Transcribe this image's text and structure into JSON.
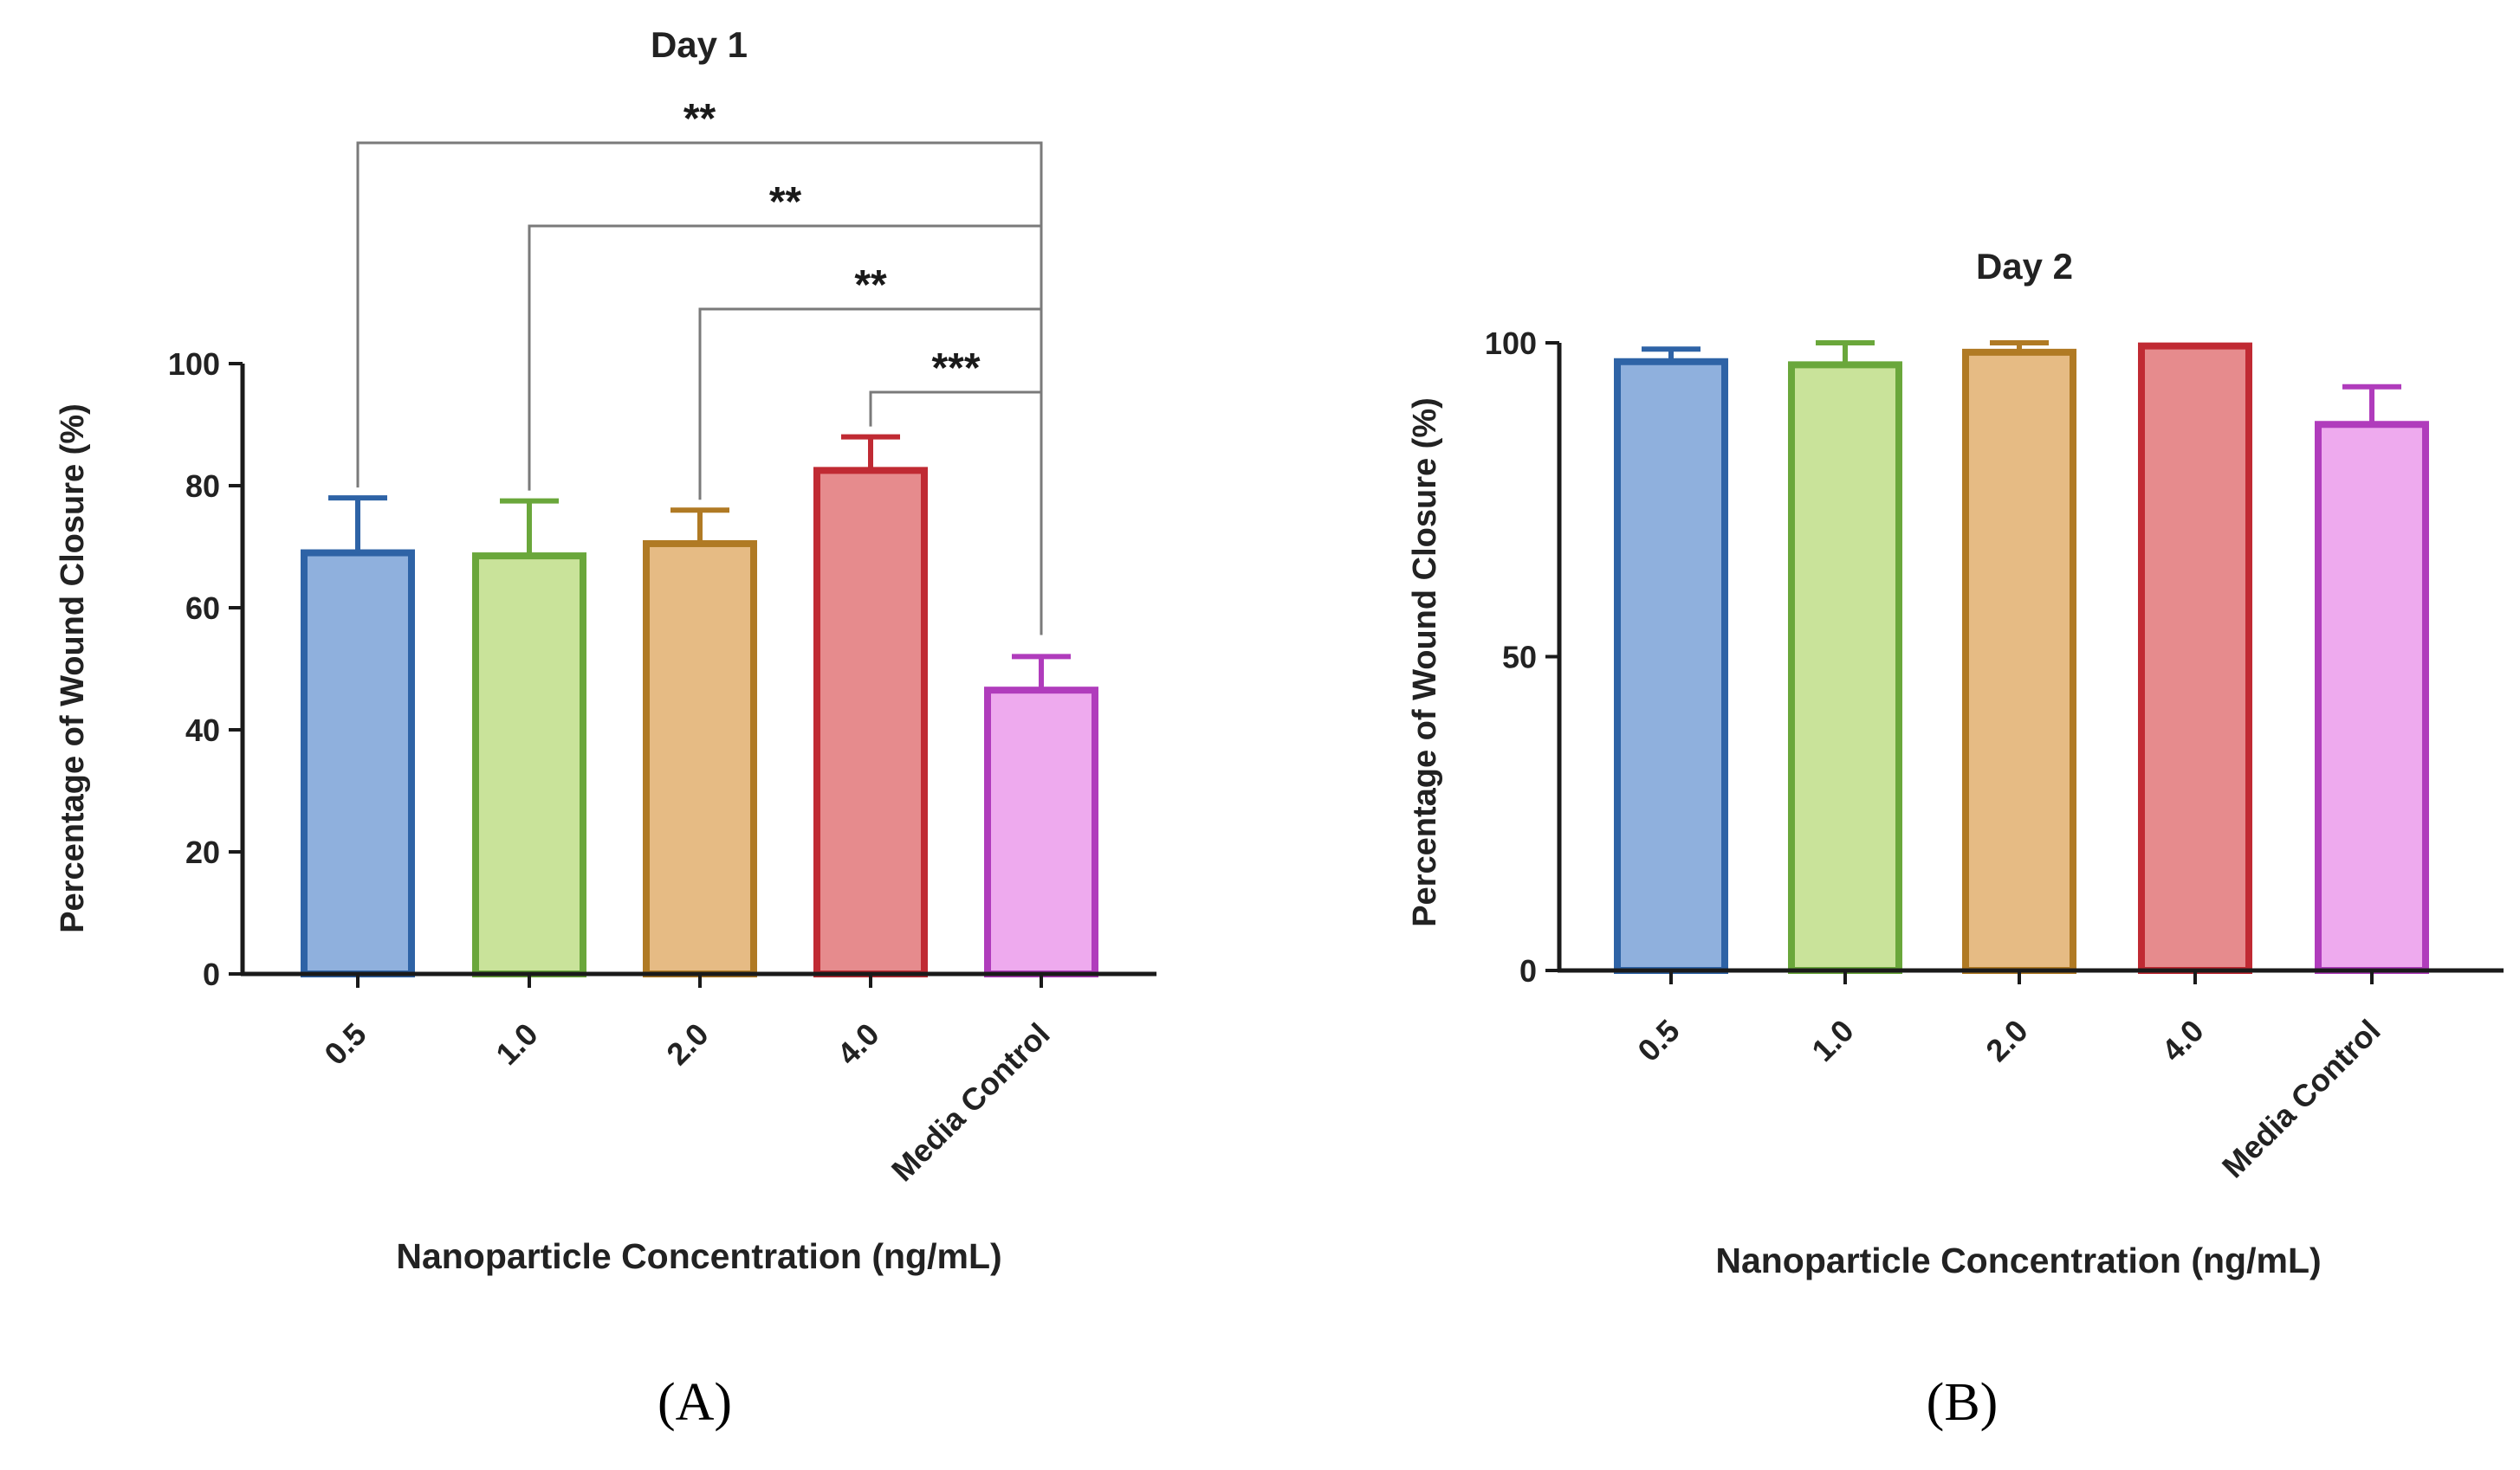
{
  "chart_data": [
    {
      "type": "bar",
      "panel_label": "(A)",
      "title": "Day 1",
      "xlabel": "Nanoparticle Concentration (ng/mL)",
      "ylabel": "Percentage of Wound Closure (%)",
      "ylim": [
        0,
        100
      ],
      "yticks": [
        0,
        20,
        40,
        60,
        80,
        100
      ],
      "categories": [
        "0.5",
        "1.0",
        "2.0",
        "4.0",
        "Media Control"
      ],
      "values": [
        69,
        68.5,
        70.5,
        82.5,
        46.5
      ],
      "errors": [
        9,
        9,
        5.5,
        5.5,
        5.5
      ],
      "significance": [
        {
          "from": "0.5",
          "to": "Media Control",
          "label": "**"
        },
        {
          "from": "1.0",
          "to": "Media Control",
          "label": "**"
        },
        {
          "from": "2.0",
          "to": "Media Control",
          "label": "**"
        },
        {
          "from": "4.0",
          "to": "Media Control",
          "label": "***"
        }
      ]
    },
    {
      "type": "bar",
      "panel_label": "(B)",
      "title": "Day 2",
      "xlabel": "Nanoparticle Concentration (ng/mL)",
      "ylabel": "Percentage of Wound Closure (%)",
      "ylim": [
        0,
        100
      ],
      "yticks": [
        0,
        50,
        100
      ],
      "categories": [
        "0.5",
        "1.0",
        "2.0",
        "4.0",
        "Media Control"
      ],
      "values": [
        97,
        96.5,
        98.5,
        99.5,
        87
      ],
      "errors": [
        2,
        3.5,
        1.5,
        0,
        6
      ],
      "significance": []
    }
  ],
  "colors": {
    "fills": [
      "#8fb0dd",
      "#c9e39a",
      "#e6bb84",
      "#e68b8d",
      "#eeaaee"
    ],
    "strokes": [
      "#2e63a6",
      "#6aa73b",
      "#b07a24",
      "#c02a33",
      "#b03cbc"
    ],
    "axis": "#1a1a1a",
    "bracket": "#7a7a7a"
  }
}
